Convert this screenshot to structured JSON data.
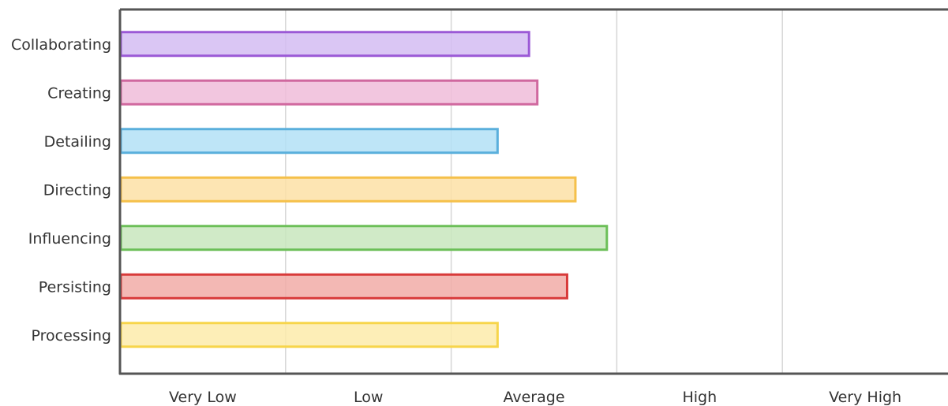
{
  "chart_data": {
    "type": "bar",
    "orientation": "horizontal",
    "categories": [
      "Collaborating",
      "Creating",
      "Detailing",
      "Directing",
      "Influencing",
      "Persisting",
      "Processing"
    ],
    "values": [
      2.47,
      2.52,
      2.28,
      2.75,
      2.94,
      2.7,
      2.28
    ],
    "colors": [
      "#9b59d6",
      "#d0689f",
      "#5aafdc",
      "#f5c04a",
      "#6cbf58",
      "#d83a3a",
      "#f7d54b"
    ],
    "fills": [
      "#d3bcf2",
      "#f0bcd9",
      "#b3e0f6",
      "#fde1a6",
      "#c8e6bd",
      "#f1aba7",
      "#fdebaa"
    ],
    "x_ticks": [
      "Very Low",
      "Low",
      "Average",
      "High",
      "Very High"
    ],
    "xlim": [
      0,
      5
    ],
    "grid": true
  }
}
